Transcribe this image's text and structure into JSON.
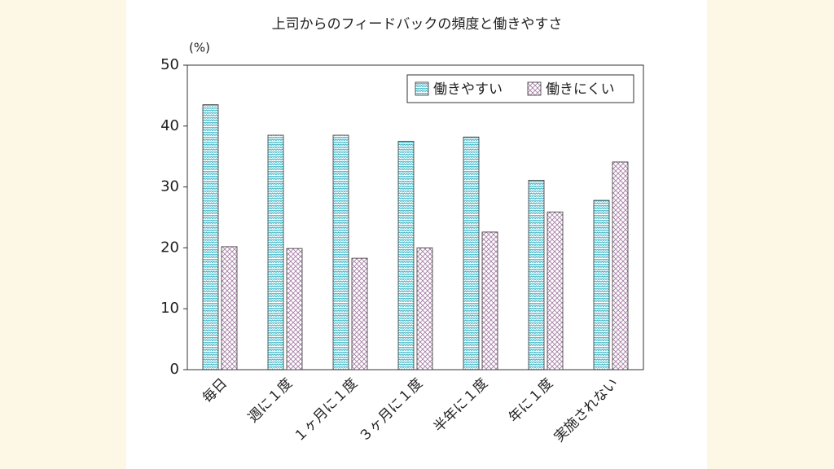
{
  "chart_data": {
    "type": "bar",
    "title": "上司からのフィードバックの頻度と働きやすさ",
    "y_label": "(%)",
    "categories": [
      "毎日",
      "週に１度",
      "１ヶ月に１度",
      "３ヶ月に１度",
      "半年に１度",
      "年に１度",
      "実施されない"
    ],
    "series": [
      {
        "name": "働きやすい",
        "color": "#3bb5c6",
        "values": [
          43.5,
          38.5,
          38.5,
          37.5,
          38.2,
          31.1,
          27.8
        ]
      },
      {
        "name": "働きにくい",
        "color": "#a77fa6",
        "values": [
          20.2,
          19.9,
          18.3,
          20.0,
          22.6,
          25.9,
          34.1
        ]
      }
    ],
    "ylim": [
      0,
      50
    ],
    "yticks": [
      0,
      10,
      20,
      30,
      40,
      50
    ],
    "legend": "upper right"
  }
}
